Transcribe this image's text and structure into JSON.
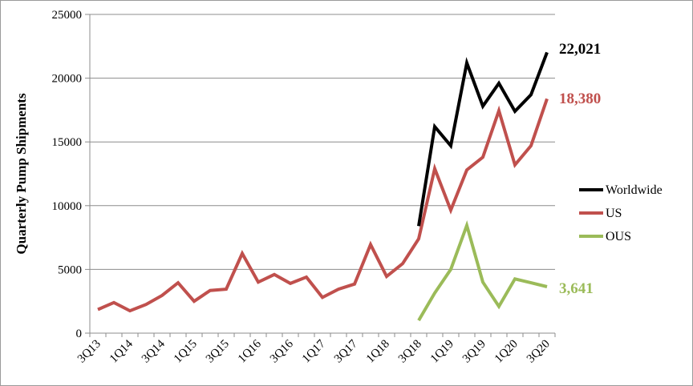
{
  "chart_data": {
    "type": "line",
    "ylabel": "Quarterly Pump Shipments",
    "xlabel": "",
    "ylim": [
      0,
      25000
    ],
    "yticks": [
      0,
      5000,
      10000,
      15000,
      20000,
      25000
    ],
    "y_tick_labels": [
      "0",
      "5000",
      "10000",
      "15000",
      "20000",
      "25000"
    ],
    "grid": "horizontal",
    "legend_position": "right",
    "quarters": [
      "3Q13",
      "4Q13",
      "1Q14",
      "2Q14",
      "3Q14",
      "4Q14",
      "1Q15",
      "2Q15",
      "3Q15",
      "4Q15",
      "1Q16",
      "2Q16",
      "3Q16",
      "4Q16",
      "1Q17",
      "2Q17",
      "3Q17",
      "4Q17",
      "1Q18",
      "2Q18",
      "3Q18",
      "4Q18",
      "1Q19",
      "2Q19",
      "3Q19",
      "4Q19",
      "1Q20",
      "2Q20",
      "3Q20"
    ],
    "x_tick_labels": [
      "3Q13",
      "1Q14",
      "3Q14",
      "1Q15",
      "3Q15",
      "1Q16",
      "3Q16",
      "1Q17",
      "3Q17",
      "1Q18",
      "3Q18",
      "1Q19",
      "3Q19",
      "1Q20",
      "3Q20"
    ],
    "series": [
      {
        "name": "Worldwide",
        "color": "#000000",
        "values": [
          null,
          null,
          null,
          null,
          null,
          null,
          null,
          null,
          null,
          null,
          null,
          null,
          null,
          null,
          null,
          null,
          null,
          null,
          null,
          null,
          8400,
          16200,
          14700,
          21200,
          17800,
          19600,
          17400,
          18700,
          22021
        ],
        "end_label": "22,021"
      },
      {
        "name": "US",
        "color": "#c0504d",
        "values": [
          1850,
          2400,
          1750,
          2250,
          2950,
          3950,
          2500,
          3350,
          3450,
          6250,
          4000,
          4600,
          3900,
          4400,
          2800,
          3450,
          3850,
          6950,
          4450,
          5450,
          7400,
          12900,
          9650,
          12800,
          13800,
          17450,
          13200,
          14700,
          18380
        ],
        "end_label": "18,380"
      },
      {
        "name": "OUS",
        "color": "#9bbb59",
        "values": [
          null,
          null,
          null,
          null,
          null,
          null,
          null,
          null,
          null,
          null,
          null,
          null,
          null,
          null,
          null,
          null,
          null,
          null,
          null,
          null,
          1000,
          3150,
          5000,
          8450,
          4000,
          2100,
          4250,
          3950,
          3641
        ],
        "end_label": "3,641"
      }
    ]
  }
}
